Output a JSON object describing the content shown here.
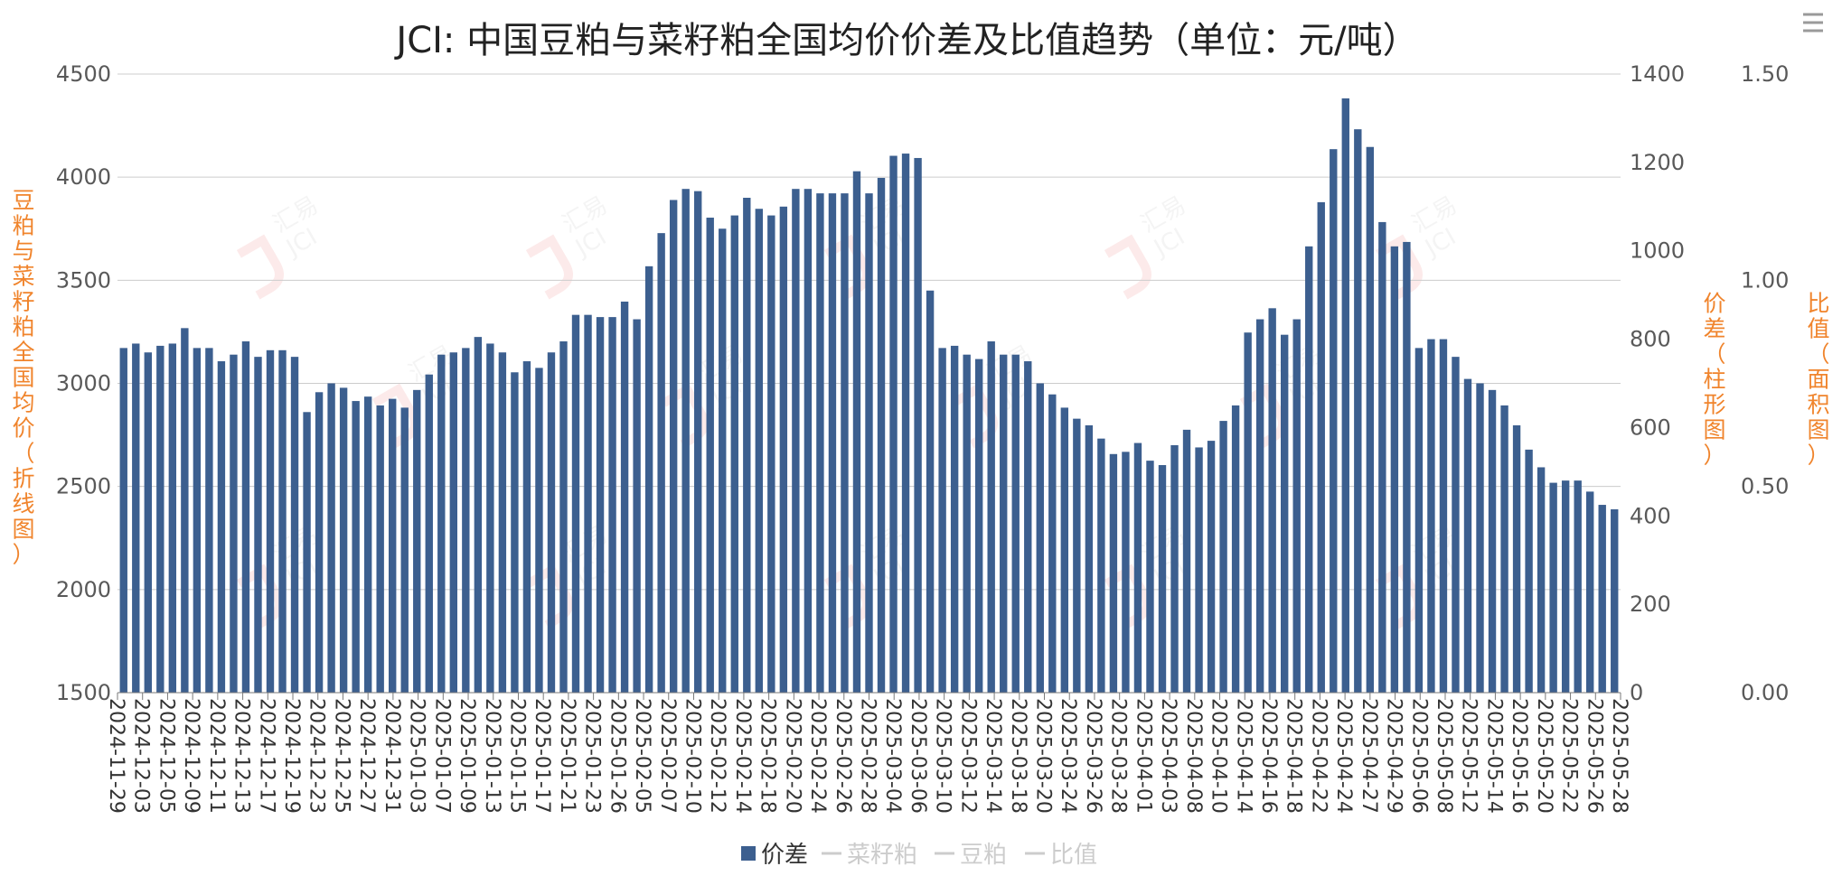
{
  "colors": {
    "bar": "#3c5f8f",
    "axis_title": "#f0842c",
    "inactive_legend": "#cccccc",
    "legend_active_text": "#333333",
    "watermark_red": "#f2a3a3",
    "watermark_gray": "#d0d0d0"
  },
  "menu_icon": "hamburger-menu-icon",
  "watermark": {
    "line1": "汇易",
    "line2": "JCI"
  },
  "chart_data": {
    "type": "bar",
    "title": "JCI: 中国豆粕与菜籽粕全国均价价差及比值趋势（单位：元/吨）",
    "axes": {
      "left": {
        "label": "豆粕与菜籽粕全国均价（折线图）",
        "min": 1500,
        "max": 4500,
        "ticks": [
          "4500",
          "4000",
          "3500",
          "3000",
          "2500",
          "2000",
          "1500"
        ]
      },
      "right1": {
        "label": "价差（柱形图）",
        "min": 0,
        "max": 1400,
        "ticks": [
          "1400",
          "1200",
          "1000",
          "800",
          "600",
          "400",
          "200",
          "0"
        ]
      },
      "right2": {
        "label": "比值（面积图）",
        "min": 0,
        "max": 1.5,
        "ticks": [
          "1.50",
          "1.00",
          "0.50",
          "0.00"
        ]
      }
    },
    "grid": true,
    "legend_position": "bottom-center",
    "legend": [
      {
        "name": "价差",
        "active": true
      },
      {
        "name": "菜籽粕",
        "active": false
      },
      {
        "name": "豆粕",
        "active": false
      },
      {
        "name": "比值",
        "active": false
      }
    ],
    "x_tick_labels": [
      "2024-11-29",
      "2024-12-03",
      "2024-12-05",
      "2024-12-09",
      "2024-12-11",
      "2024-12-13",
      "2024-12-17",
      "2024-12-19",
      "2024-12-23",
      "2024-12-25",
      "2024-12-27",
      "2024-12-31",
      "2025-01-03",
      "2025-01-07",
      "2025-01-09",
      "2025-01-13",
      "2025-01-15",
      "2025-01-17",
      "2025-01-21",
      "2025-01-23",
      "2025-01-26",
      "2025-02-05",
      "2025-02-07",
      "2025-02-10",
      "2025-02-12",
      "2025-02-14",
      "2025-02-18",
      "2025-02-20",
      "2025-02-24",
      "2025-02-26",
      "2025-02-28",
      "2025-03-04",
      "2025-03-06",
      "2025-03-10",
      "2025-03-12",
      "2025-03-14",
      "2025-03-18",
      "2025-03-20",
      "2025-03-24",
      "2025-03-26",
      "2025-03-28",
      "2025-04-01",
      "2025-04-03",
      "2025-04-08",
      "2025-04-10",
      "2025-04-14",
      "2025-04-16",
      "2025-04-18",
      "2025-04-22",
      "2025-04-24",
      "2025-04-27",
      "2025-04-29",
      "2025-05-06",
      "2025-05-08",
      "2025-05-12",
      "2025-05-14",
      "2025-05-16",
      "2025-05-20",
      "2025-05-22",
      "2025-05-26",
      "2025-05-28"
    ],
    "series": [
      {
        "name": "价差",
        "axis": "right1",
        "values": [
          780,
          790,
          770,
          785,
          790,
          825,
          780,
          780,
          750,
          765,
          795,
          760,
          775,
          775,
          760,
          635,
          680,
          700,
          690,
          660,
          670,
          650,
          665,
          645,
          685,
          720,
          765,
          770,
          780,
          805,
          790,
          770,
          725,
          750,
          735,
          770,
          795,
          855,
          855,
          850,
          850,
          885,
          845,
          965,
          1040,
          1115,
          1140,
          1135,
          1075,
          1050,
          1080,
          1120,
          1095,
          1080,
          1100,
          1140,
          1140,
          1130,
          1130,
          1130,
          1180,
          1130,
          1165,
          1215,
          1220,
          1210,
          910,
          780,
          785,
          765,
          755,
          795,
          765,
          765,
          750,
          700,
          675,
          645,
          620,
          605,
          575,
          540,
          545,
          565,
          525,
          515,
          560,
          595,
          555,
          570,
          615,
          650,
          815,
          845,
          870,
          810,
          845,
          1010,
          1110,
          1230,
          1345,
          1275,
          1235,
          1065,
          1010,
          1020,
          780,
          800,
          800,
          760,
          710,
          700,
          685,
          650,
          605,
          550,
          510,
          475,
          480,
          480,
          455,
          425,
          415
        ]
      },
      {
        "name": "菜籽粕",
        "axis": "left",
        "values": []
      },
      {
        "name": "豆粕",
        "axis": "left",
        "values": []
      },
      {
        "name": "比值",
        "axis": "right2",
        "values": []
      }
    ]
  }
}
